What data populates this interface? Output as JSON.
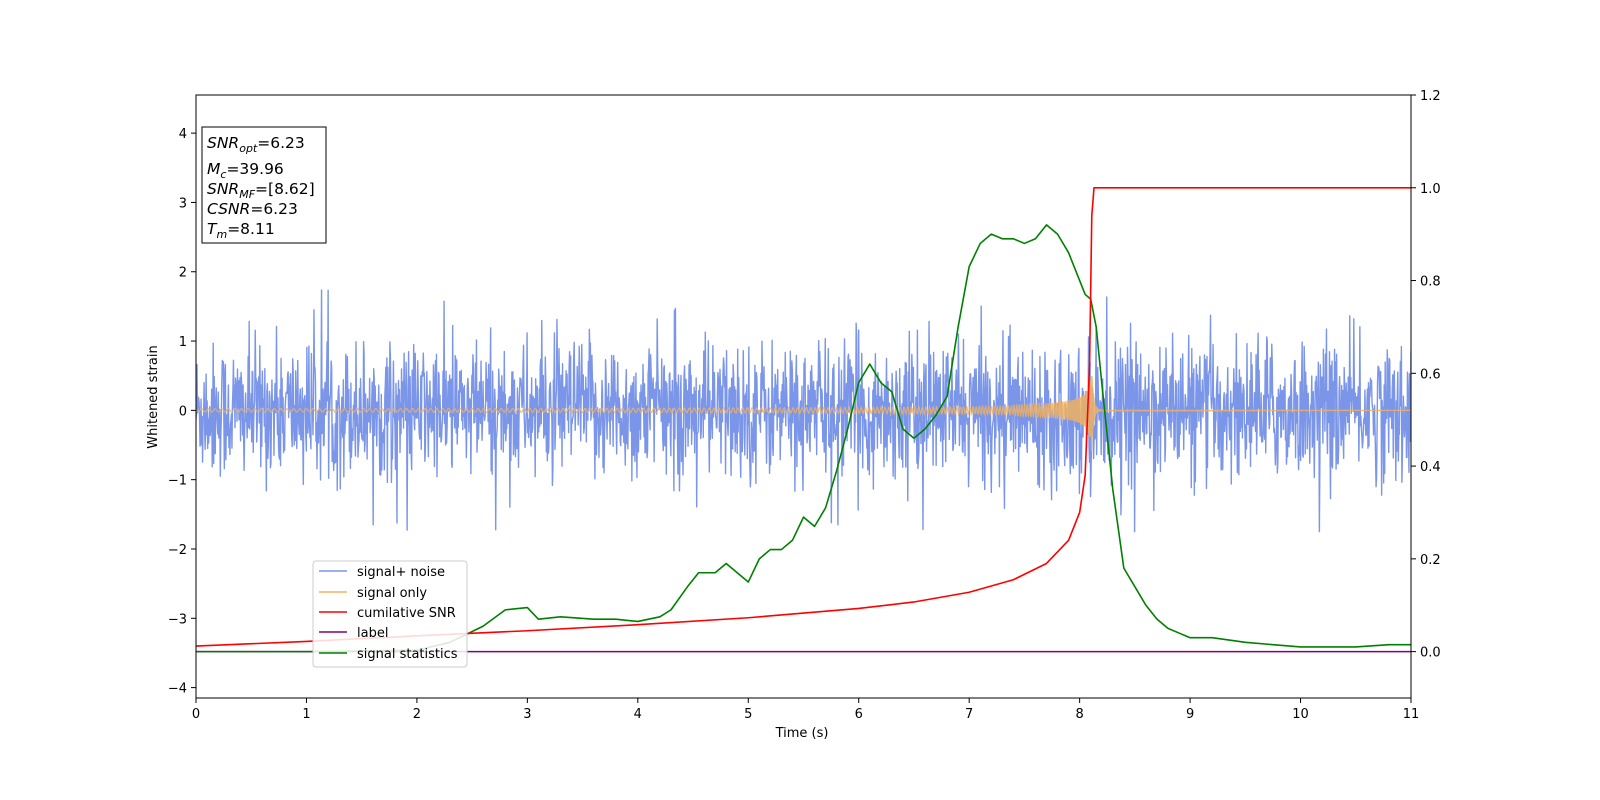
{
  "chart_data": {
    "type": "line",
    "xlabel": "Time (s)",
    "ylabel_left": "Whitened strain",
    "ylabel_right": "",
    "xlim": [
      0,
      11
    ],
    "ylim_left": [
      -4.15,
      4.55
    ],
    "ylim_right": [
      -0.1,
      1.2
    ],
    "x_ticks": [
      0,
      1,
      2,
      3,
      4,
      5,
      6,
      7,
      8,
      9,
      10,
      11
    ],
    "y_ticks_left": [
      -4,
      -3,
      -2,
      -1,
      0,
      1,
      2,
      3,
      4
    ],
    "y_ticks_right": [
      0.0,
      0.2,
      0.4,
      0.6,
      0.8,
      1.0,
      1.2
    ],
    "grid": false,
    "legend_position": "lower-left",
    "annotation": {
      "snr_opt": {
        "symbol": "SNR",
        "sub": "opt",
        "value": "=6.23"
      },
      "mc": {
        "symbol": "M",
        "sub": "c",
        "value": "=39.96"
      },
      "snr_mf": {
        "symbol": "SNR",
        "sub": "MF",
        "value": "=[8.62]"
      },
      "csnr": {
        "symbol": "CSNR",
        "value": "=6.23"
      },
      "tm": {
        "symbol": "T",
        "sub": "m",
        "value": "=8.11"
      }
    },
    "series": [
      {
        "name": "signal+ noise",
        "axis": "left",
        "color": "#7b96e8",
        "kind": "noise",
        "amplitude_typical": 1.0,
        "amplitude_peak": 1.75
      },
      {
        "name": "signal only",
        "axis": "left",
        "color": "#f0b060",
        "kind": "chirp",
        "merger_time": 8.11,
        "peak_amplitude": 0.6
      },
      {
        "name": "cumilative SNR",
        "axis": "right",
        "color": "#ff0000",
        "x": [
          0,
          1,
          2,
          3,
          4,
          5,
          6,
          6.5,
          7,
          7.4,
          7.7,
          7.9,
          8.0,
          8.05,
          8.09,
          8.11,
          8.13,
          8.2,
          9,
          10,
          11
        ],
        "y": [
          0.012,
          0.022,
          0.034,
          0.045,
          0.058,
          0.073,
          0.093,
          0.107,
          0.128,
          0.155,
          0.19,
          0.24,
          0.3,
          0.38,
          0.62,
          0.94,
          1.0,
          1.0,
          1.0,
          1.0,
          1.0
        ]
      },
      {
        "name": "label",
        "axis": "right",
        "color": "#800080",
        "x": [
          0,
          11
        ],
        "y": [
          0,
          0
        ]
      },
      {
        "name": "signal statistics",
        "axis": "right",
        "color": "#008000",
        "x": [
          0,
          1,
          2,
          2.3,
          2.6,
          2.8,
          3.0,
          3.1,
          3.3,
          3.6,
          3.8,
          4.0,
          4.2,
          4.3,
          4.45,
          4.55,
          4.7,
          4.8,
          4.9,
          5.0,
          5.1,
          5.2,
          5.3,
          5.4,
          5.5,
          5.6,
          5.7,
          5.8,
          5.9,
          6.0,
          6.1,
          6.2,
          6.3,
          6.4,
          6.5,
          6.6,
          6.7,
          6.8,
          6.9,
          7.0,
          7.1,
          7.2,
          7.3,
          7.4,
          7.5,
          7.6,
          7.7,
          7.8,
          7.9,
          8.0,
          8.05,
          8.1,
          8.15,
          8.2,
          8.3,
          8.4,
          8.5,
          8.6,
          8.7,
          8.8,
          8.9,
          9.0,
          9.2,
          9.5,
          10.0,
          10.5,
          10.8,
          11.0
        ],
        "y": [
          0.0,
          0.0,
          0.003,
          0.02,
          0.055,
          0.09,
          0.095,
          0.07,
          0.075,
          0.07,
          0.07,
          0.065,
          0.075,
          0.09,
          0.14,
          0.17,
          0.17,
          0.19,
          0.17,
          0.15,
          0.2,
          0.22,
          0.22,
          0.24,
          0.29,
          0.27,
          0.31,
          0.39,
          0.48,
          0.58,
          0.62,
          0.58,
          0.56,
          0.48,
          0.46,
          0.48,
          0.51,
          0.55,
          0.7,
          0.83,
          0.88,
          0.9,
          0.89,
          0.89,
          0.88,
          0.89,
          0.92,
          0.9,
          0.86,
          0.8,
          0.77,
          0.76,
          0.7,
          0.58,
          0.35,
          0.18,
          0.14,
          0.1,
          0.07,
          0.05,
          0.04,
          0.03,
          0.03,
          0.02,
          0.01,
          0.01,
          0.015,
          0.015
        ]
      }
    ]
  }
}
